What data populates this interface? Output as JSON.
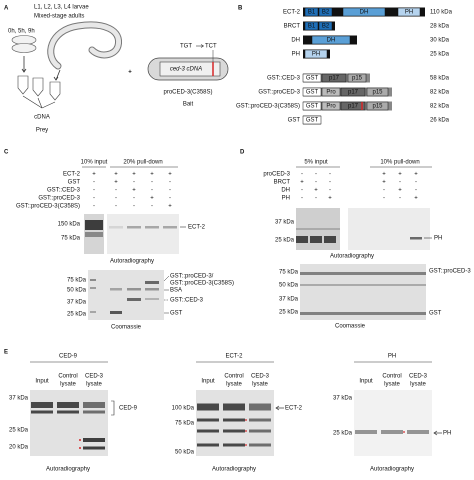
{
  "panel_a": {
    "label": "A",
    "stages": [
      "L1, L2, L3, L4 larvae",
      "Mixed-stage adults"
    ],
    "timepoints": "0h, 5h, 9h",
    "library": "cDNA",
    "prey": "Prey",
    "plus": "+",
    "codons": [
      "TGT",
      "TCT"
    ],
    "insert": "ced-3 cDNA",
    "construct": "proCED-3(C358S)",
    "bait": "Bait"
  },
  "panel_b": {
    "label": "B",
    "constructs": [
      {
        "name": "ECT-2",
        "domains": [
          "B1",
          "B2",
          "DH",
          "PH"
        ],
        "size": "110 kDa"
      },
      {
        "name": "BRCT",
        "domains": [
          "B1",
          "B2"
        ],
        "size": "28 kDa"
      },
      {
        "name": "DH",
        "domains": [
          "DH"
        ],
        "size": "30 kDa"
      },
      {
        "name": "PH",
        "domains": [
          "PH"
        ],
        "size": "25 kDa"
      },
      {
        "name": "GST::CED-3",
        "domains": [
          "GST",
          "p17",
          "p15"
        ],
        "size": "58 kDa"
      },
      {
        "name": "GST::proCED-3",
        "domains": [
          "GST",
          "Pro",
          "p17",
          "p15"
        ],
        "size": "82 kDa"
      },
      {
        "name": "GST::proCED-3(C358S)",
        "domains": [
          "GST",
          "Pro",
          "p17",
          "p15"
        ],
        "size": "82 kDa"
      },
      {
        "name": "GST",
        "domains": [
          "GST"
        ],
        "size": "26 kDa"
      }
    ]
  },
  "panel_c": {
    "label": "C",
    "input_header": "10% input",
    "pulldown_header": "20% pull-down",
    "rows": [
      {
        "name": "ECT-2",
        "signs": [
          "+",
          "+",
          "+",
          "+",
          "+"
        ]
      },
      {
        "name": "GST",
        "signs": [
          "-",
          "+",
          "-",
          "-",
          "-"
        ]
      },
      {
        "name": "GST::CED-3",
        "signs": [
          "-",
          "-",
          "+",
          "-",
          "-"
        ]
      },
      {
        "name": "GST::proCED-3",
        "signs": [
          "-",
          "-",
          "-",
          "+",
          "-"
        ]
      },
      {
        "name": "GST::proCED-3(C358S)",
        "signs": [
          "-",
          "-",
          "-",
          "-",
          "+"
        ]
      }
    ],
    "autorad_markers": [
      "150 kDa",
      "75 kDa"
    ],
    "autorad_band": "ECT-2",
    "autorad_caption": "Autoradiography",
    "coomassie_markers": [
      "75 kDa",
      "50 kDa",
      "37 kDa",
      "25 kDa"
    ],
    "coomassie_bands": [
      "GST::proCED-3/",
      "GST::proCED-3(C358S)",
      "BSA",
      "GST::CED-3",
      "GST"
    ],
    "coomassie_caption": "Coomassie"
  },
  "panel_d": {
    "label": "D",
    "input_header": "5% input",
    "pulldown_header": "10% pull-down",
    "rows": [
      {
        "name": "proCED-3",
        "signs": [
          "-",
          "-",
          "-",
          "+",
          "+",
          "+"
        ]
      },
      {
        "name": "BRCT",
        "signs": [
          "+",
          "-",
          "-",
          "+",
          "-",
          "-"
        ]
      },
      {
        "name": "DH",
        "signs": [
          "-",
          "+",
          "-",
          "-",
          "+",
          "-"
        ]
      },
      {
        "name": "PH",
        "signs": [
          "-",
          "-",
          "+",
          "-",
          "-",
          "+"
        ]
      }
    ],
    "autorad_markers": [
      "37 kDa",
      "25 kDa"
    ],
    "autorad_band": "PH",
    "autorad_caption": "Autoradiography",
    "coomassie_markers": [
      "75 kDa",
      "50 kDa",
      "37 kDa",
      "25 kDa"
    ],
    "coomassie_bands": [
      "GST::proCED-3",
      "GST"
    ],
    "coomassie_caption": "Coomassie"
  },
  "panel_e": {
    "label": "E",
    "subpanels": [
      {
        "title": "CED-9",
        "lanes": [
          [
            "Input"
          ],
          [
            "Control",
            "lysate"
          ],
          [
            "CED-3",
            "lysate"
          ]
        ],
        "markers": [
          "37 kDa",
          "25 kDa",
          "20 kDa"
        ],
        "band": "CED-9",
        "caption": "Autoradiography"
      },
      {
        "title": "ECT-2",
        "lanes": [
          [
            "Input"
          ],
          [
            "Control",
            "lysate"
          ],
          [
            "CED-3",
            "lysate"
          ]
        ],
        "markers": [
          "100 kDa",
          "75 kDa",
          "50 kDa"
        ],
        "band": "ECT-2",
        "caption": "Autoradiography"
      },
      {
        "title": "PH",
        "lanes": [
          [
            "Input"
          ],
          [
            "Control",
            "lysate"
          ],
          [
            "CED-3",
            "lysate"
          ]
        ],
        "markers": [
          "37 kDa",
          "25 kDa"
        ],
        "band": "PH",
        "caption": "Autoradiography"
      }
    ]
  }
}
